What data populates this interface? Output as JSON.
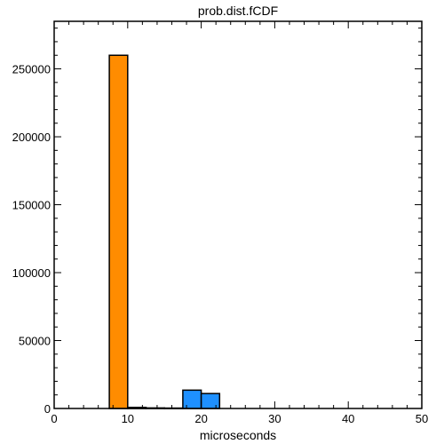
{
  "chart_data": {
    "type": "bar",
    "title": "prob.dist.fCDF",
    "xlabel": "microseconds",
    "ylabel": "",
    "xlim": [
      0,
      50
    ],
    "ylim": [
      0,
      285000
    ],
    "grid": false,
    "x_ticks": [
      0,
      10,
      20,
      30,
      40,
      50
    ],
    "x_tick_labels": [
      "0",
      "10",
      "20",
      "30",
      "40",
      "50"
    ],
    "y_ticks": [
      0,
      50000,
      100000,
      150000,
      200000,
      250000
    ],
    "y_tick_labels": [
      "0",
      "50000",
      "100000",
      "150000",
      "200000",
      "250000"
    ],
    "series": [
      {
        "color": "#ff8c00",
        "bins": [
          {
            "x0": 7.5,
            "x1": 10,
            "value": 260000
          }
        ]
      },
      {
        "color": "#000000",
        "bins": [
          {
            "x0": 10,
            "x1": 12.5,
            "value": 800
          },
          {
            "x0": 12.5,
            "x1": 15,
            "value": 400
          },
          {
            "x0": 15,
            "x1": 17.5,
            "value": 300
          }
        ]
      },
      {
        "color": "#1e90ff",
        "bins": [
          {
            "x0": 17.5,
            "x1": 20,
            "value": 13500
          },
          {
            "x0": 20,
            "x1": 22.5,
            "value": 11000
          }
        ]
      }
    ]
  }
}
